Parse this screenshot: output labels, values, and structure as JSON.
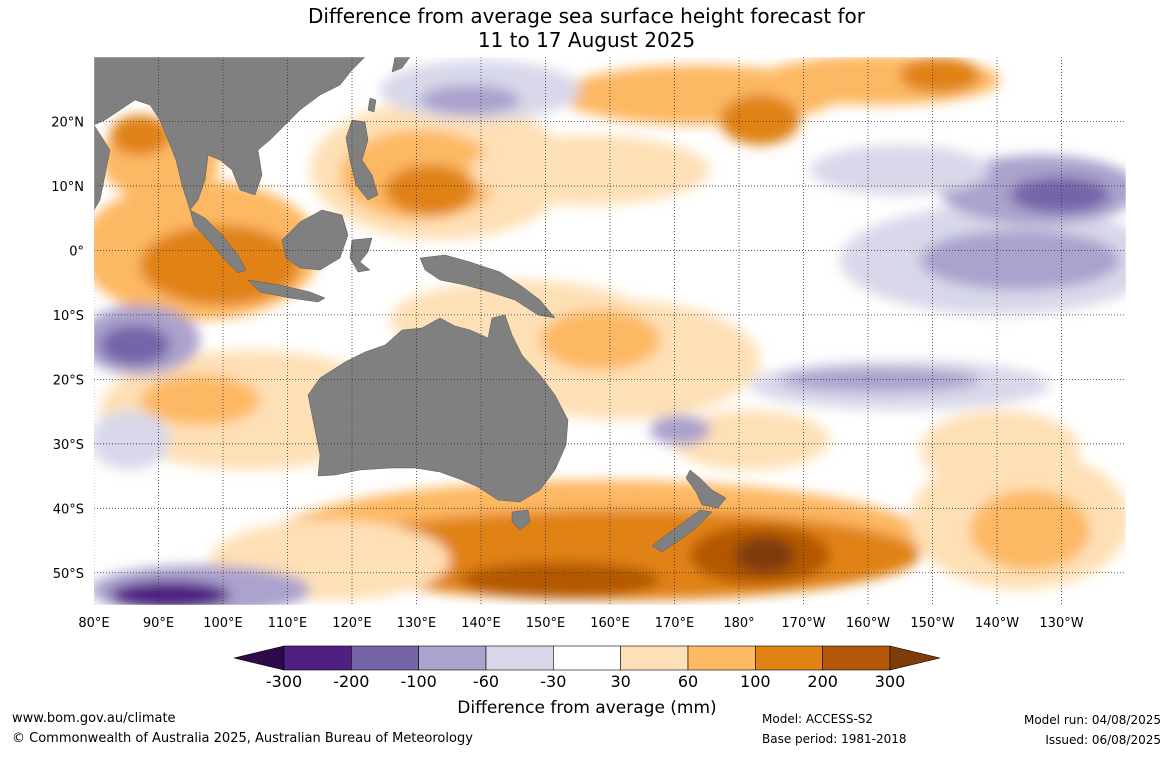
{
  "title": {
    "line1": "Difference from average sea surface height forecast for",
    "line2": "11 to 17 August 2025"
  },
  "map": {
    "lon_ticks": [
      {
        "lon": 80,
        "label": "80°E"
      },
      {
        "lon": 90,
        "label": "90°E"
      },
      {
        "lon": 100,
        "label": "100°E"
      },
      {
        "lon": 110,
        "label": "110°E"
      },
      {
        "lon": 120,
        "label": "120°E"
      },
      {
        "lon": 130,
        "label": "130°E"
      },
      {
        "lon": 140,
        "label": "140°E"
      },
      {
        "lon": 150,
        "label": "150°E"
      },
      {
        "lon": 160,
        "label": "160°E"
      },
      {
        "lon": 170,
        "label": "170°E"
      },
      {
        "lon": 180,
        "label": "180°"
      },
      {
        "lon": 190,
        "label": "170°W"
      },
      {
        "lon": 200,
        "label": "160°W"
      },
      {
        "lon": 210,
        "label": "150°W"
      },
      {
        "lon": 220,
        "label": "140°W"
      },
      {
        "lon": 230,
        "label": "130°W"
      }
    ],
    "lat_ticks": [
      {
        "lat": 20,
        "label": "20°N"
      },
      {
        "lat": 10,
        "label": "10°N"
      },
      {
        "lat": 0,
        "label": "0°"
      },
      {
        "lat": -10,
        "label": "10°S"
      },
      {
        "lat": -20,
        "label": "20°S"
      },
      {
        "lat": -30,
        "label": "30°S"
      },
      {
        "lat": -40,
        "label": "40°S"
      },
      {
        "lat": -50,
        "label": "50°S"
      }
    ],
    "lon_range": [
      80,
      240
    ],
    "lat_range": [
      -55,
      30
    ],
    "land_color": "#808080"
  },
  "colorbar": {
    "title": "Difference from average (mm)",
    "boundaries": [
      "-300",
      "-200",
      "-100",
      "-60",
      "-30",
      "30",
      "60",
      "100",
      "200",
      "300"
    ],
    "colors": [
      "#2e0a4a",
      "#4f1f82",
      "#7565a8",
      "#aba2cd",
      "#d8d8ea",
      "#ffffff",
      "#fee0b6",
      "#fdb863",
      "#e08214",
      "#b35806",
      "#7f3b08"
    ]
  },
  "footer": {
    "url": "www.bom.gov.au/climate",
    "copyright": "© Commonwealth of Australia 2025, Australian Bureau of Meteorology",
    "model": "Model: ACCESS-S2",
    "base_period": "Base period: 1981-2018",
    "model_run": "Model run: 04/08/2025",
    "issued": "Issued: 06/08/2025"
  }
}
